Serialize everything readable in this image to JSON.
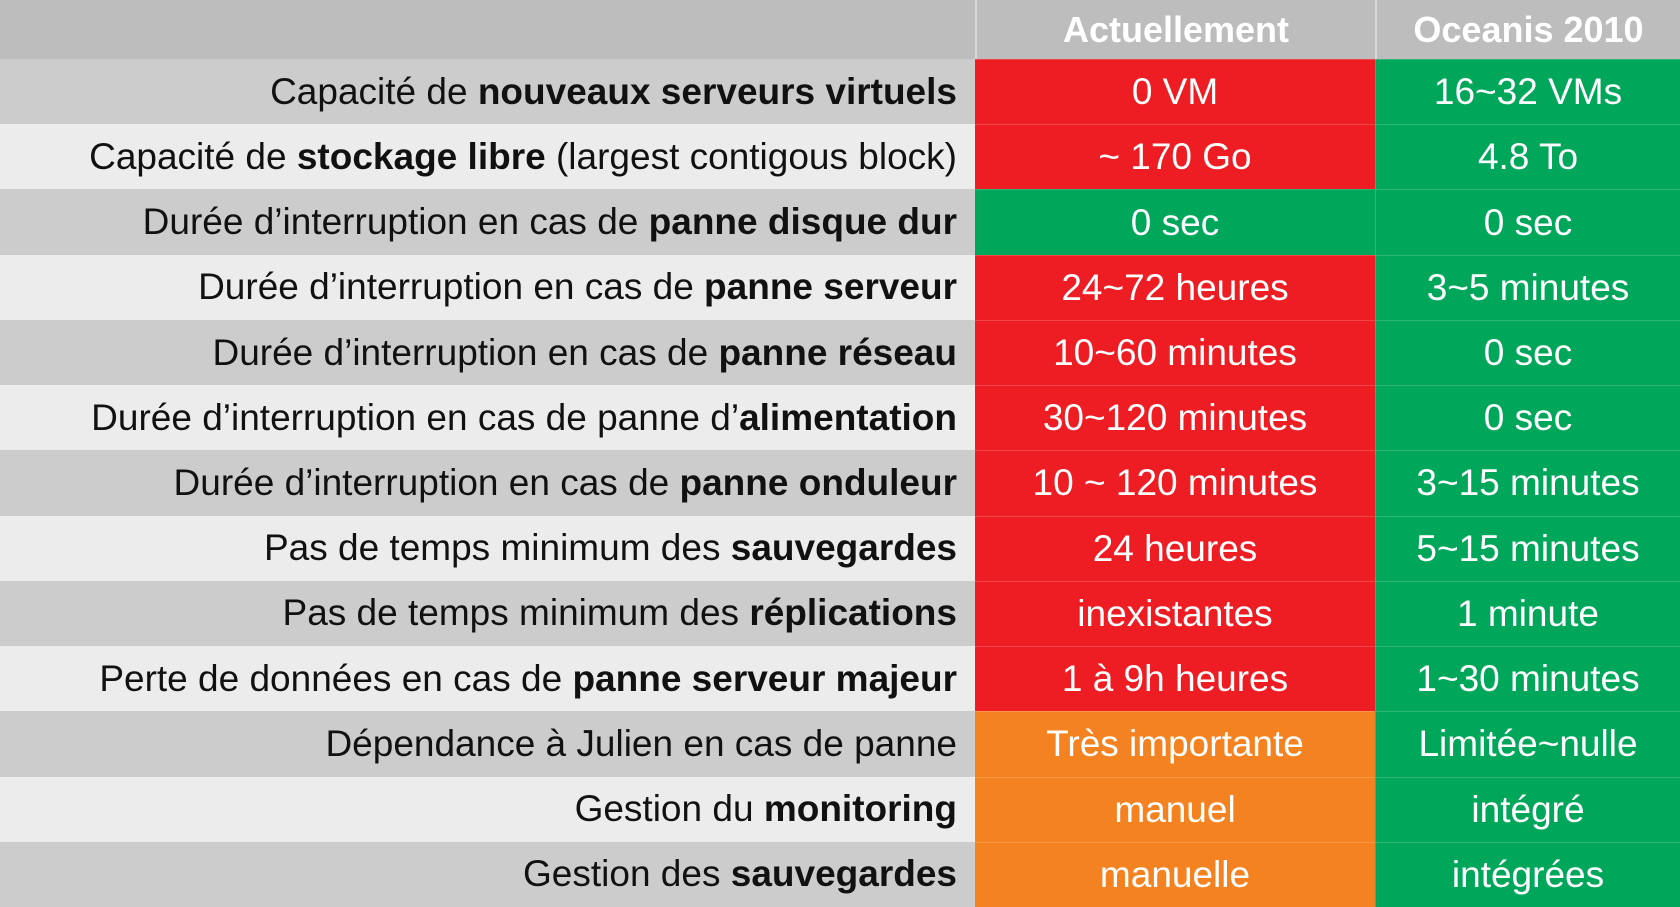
{
  "header": {
    "col_actual": "Actuellement",
    "col_oceanis": "Oceanis 2010"
  },
  "colors": {
    "red": "#ee1d23",
    "green": "#00a65a",
    "orange": "#f58220",
    "header_bg": "#bdbdbd",
    "row_dark": "#cccccc",
    "row_light": "#ececec"
  },
  "rows": [
    {
      "label_parts": [
        {
          "text": "Capacité de ",
          "bold": false
        },
        {
          "text": "nouveaux serveurs virtuels",
          "bold": true
        }
      ],
      "actual": {
        "text": "0 VM",
        "status": "red"
      },
      "oceanis": {
        "text": "16~32 VMs",
        "status": "green"
      }
    },
    {
      "label_parts": [
        {
          "text": "Capacité de ",
          "bold": false
        },
        {
          "text": "stockage libre",
          "bold": true
        },
        {
          "text": " (largest contigous block)",
          "bold": false
        }
      ],
      "actual": {
        "text": "~ 170 Go",
        "status": "red"
      },
      "oceanis": {
        "text": "4.8 To",
        "status": "green"
      }
    },
    {
      "label_parts": [
        {
          "text": "Durée d’interruption en cas de ",
          "bold": false
        },
        {
          "text": "panne disque dur",
          "bold": true
        }
      ],
      "actual": {
        "text": "0 sec",
        "status": "green"
      },
      "oceanis": {
        "text": "0 sec",
        "status": "green"
      }
    },
    {
      "label_parts": [
        {
          "text": "Durée d’interruption en cas de ",
          "bold": false
        },
        {
          "text": "panne serveur",
          "bold": true
        }
      ],
      "actual": {
        "text": "24~72 heures",
        "status": "red"
      },
      "oceanis": {
        "text": "3~5 minutes",
        "status": "green"
      }
    },
    {
      "label_parts": [
        {
          "text": "Durée d’interruption en cas de ",
          "bold": false
        },
        {
          "text": "panne réseau",
          "bold": true
        }
      ],
      "actual": {
        "text": "10~60 minutes",
        "status": "red"
      },
      "oceanis": {
        "text": "0 sec",
        "status": "green"
      }
    },
    {
      "label_parts": [
        {
          "text": "Durée d’interruption en cas de panne d’",
          "bold": false
        },
        {
          "text": "alimentation",
          "bold": true
        }
      ],
      "actual": {
        "text": "30~120 minutes",
        "status": "red"
      },
      "oceanis": {
        "text": "0 sec",
        "status": "green"
      }
    },
    {
      "label_parts": [
        {
          "text": "Durée d’interruption en cas de ",
          "bold": false
        },
        {
          "text": "panne onduleur",
          "bold": true
        }
      ],
      "actual": {
        "text": "10 ~ 120 minutes",
        "status": "red"
      },
      "oceanis": {
        "text": "3~15 minutes",
        "status": "green"
      }
    },
    {
      "label_parts": [
        {
          "text": "Pas de temps minimum des ",
          "bold": false
        },
        {
          "text": "sauvegardes",
          "bold": true
        }
      ],
      "actual": {
        "text": "24 heures",
        "status": "red"
      },
      "oceanis": {
        "text": "5~15 minutes",
        "status": "green"
      }
    },
    {
      "label_parts": [
        {
          "text": "Pas de temps minimum des ",
          "bold": false
        },
        {
          "text": "réplications",
          "bold": true
        }
      ],
      "actual": {
        "text": "inexistantes",
        "status": "red"
      },
      "oceanis": {
        "text": "1 minute",
        "status": "green"
      }
    },
    {
      "label_parts": [
        {
          "text": "Perte de données en cas de ",
          "bold": false
        },
        {
          "text": "panne serveur majeur",
          "bold": true
        }
      ],
      "actual": {
        "text": "1 à 9h heures",
        "status": "red"
      },
      "oceanis": {
        "text": "1~30 minutes",
        "status": "green"
      }
    },
    {
      "label_parts": [
        {
          "text": "Dépendance à Julien en cas de panne",
          "bold": false
        }
      ],
      "actual": {
        "text": "Très importante",
        "status": "orange"
      },
      "oceanis": {
        "text": "Limitée~nulle",
        "status": "green"
      }
    },
    {
      "label_parts": [
        {
          "text": "Gestion du ",
          "bold": false
        },
        {
          "text": "monitoring",
          "bold": true
        }
      ],
      "actual": {
        "text": "manuel",
        "status": "orange"
      },
      "oceanis": {
        "text": "intégré",
        "status": "green"
      }
    },
    {
      "label_parts": [
        {
          "text": "Gestion des ",
          "bold": false
        },
        {
          "text": "sauvegardes",
          "bold": true
        }
      ],
      "actual": {
        "text": "manuelle",
        "status": "orange"
      },
      "oceanis": {
        "text": "intégrées",
        "status": "green"
      }
    }
  ]
}
